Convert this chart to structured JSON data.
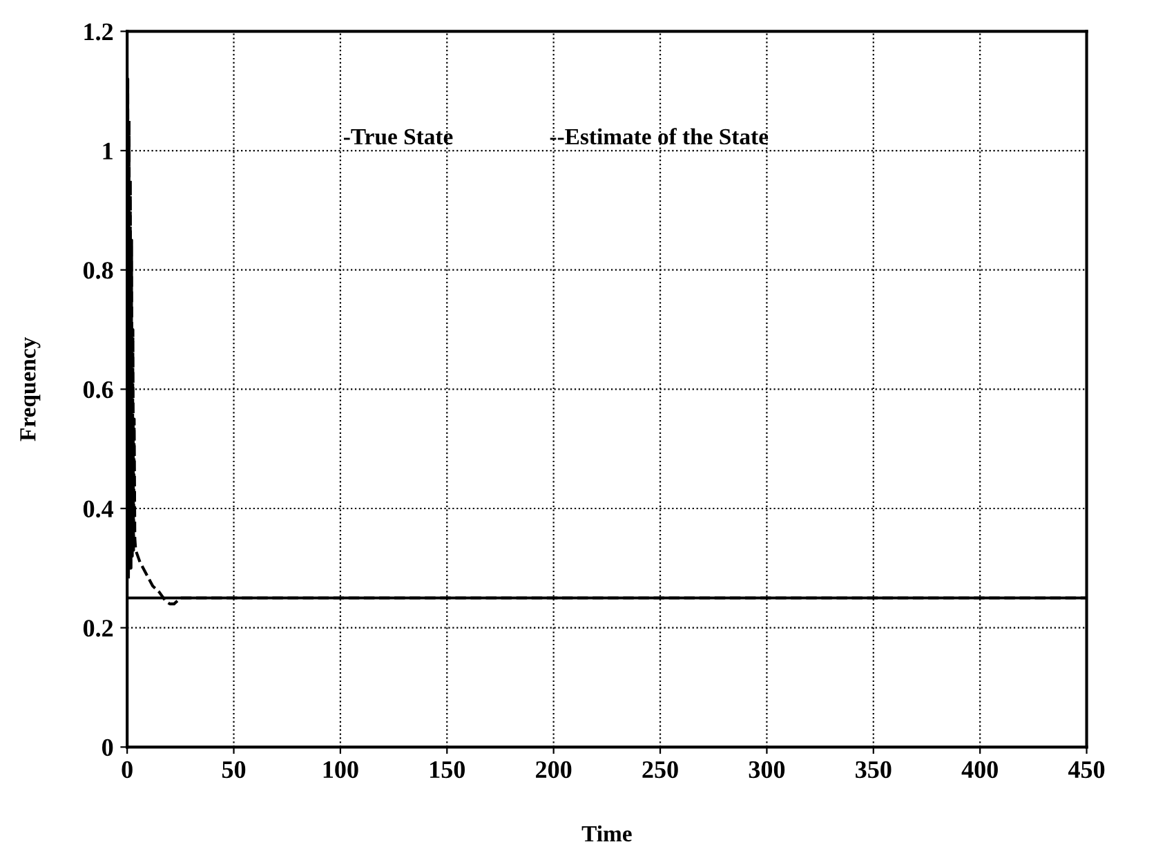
{
  "chart_data": {
    "type": "line",
    "xlabel": "Time",
    "ylabel": "Frequency",
    "xlim": [
      0,
      450
    ],
    "ylim": [
      0,
      1.2
    ],
    "xticks": [
      0,
      50,
      100,
      150,
      200,
      250,
      300,
      350,
      400,
      450
    ],
    "yticks": [
      0,
      0.2,
      0.4,
      0.6,
      0.8,
      1,
      1.2
    ],
    "grid": true,
    "annotations": [
      "-True State",
      "--Estimate of the State"
    ],
    "series": [
      {
        "color": "#000000",
        "line_style": "solid",
        "x": [
          0,
          450
        ],
        "values": [
          0.25,
          0.25
        ]
      },
      {
        "color": "#000000",
        "line_style": "dashed",
        "x": [
          0,
          0.3,
          0.6,
          0.9,
          1.2,
          1.5,
          1.8,
          2.1,
          2.4,
          2.7,
          3,
          3.3,
          3.6,
          4,
          6,
          9,
          12,
          15,
          18,
          20,
          22,
          25,
          30,
          40,
          60,
          100,
          200,
          300,
          450
        ],
        "values": [
          0.3,
          1.12,
          0.28,
          1.05,
          0.3,
          0.95,
          0.3,
          0.85,
          0.32,
          0.7,
          0.33,
          0.55,
          0.35,
          0.33,
          0.31,
          0.29,
          0.27,
          0.26,
          0.245,
          0.24,
          0.24,
          0.25,
          0.25,
          0.25,
          0.25,
          0.25,
          0.25,
          0.25,
          0.25
        ]
      }
    ]
  }
}
